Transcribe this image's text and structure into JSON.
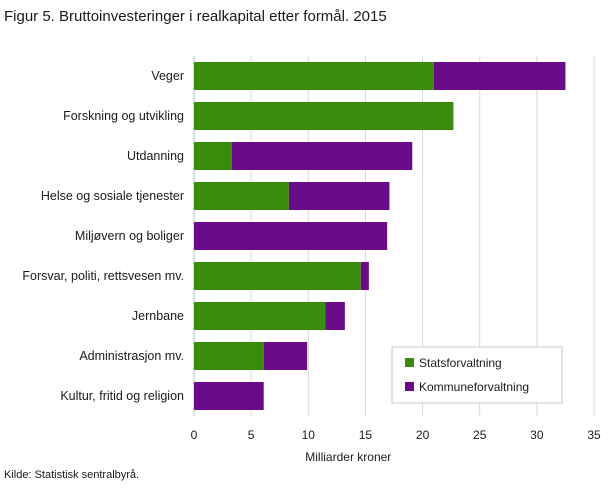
{
  "title": "Figur 5. Bruttoinvesteringer i realkapital etter formål. 2015",
  "source": "Kilde: Statistisk sentralbyrå.",
  "chart_data": {
    "type": "bar",
    "orientation": "horizontal",
    "stacked": true,
    "categories": [
      "Veger",
      "Forskning og utvikling",
      "Utdanning",
      "Helse og sosiale tjenester",
      "Miljøvern og boliger",
      "Forsvar, politi, rettsvesen mv.",
      "Jernbane",
      "Administrasjon mv.",
      "Kultur, fritid og religion"
    ],
    "series": [
      {
        "name": "Statsforvaltning",
        "color": "#3a8c0c",
        "values": [
          21.0,
          22.7,
          3.3,
          8.3,
          0.0,
          14.6,
          11.5,
          6.1,
          0.0
        ]
      },
      {
        "name": "Kommuneforvaltning",
        "color": "#6a0b8a",
        "values": [
          11.5,
          0.0,
          15.8,
          8.8,
          16.9,
          0.7,
          1.7,
          3.8,
          6.1
        ]
      }
    ],
    "xlabel": "Milliarder  kroner",
    "xlim": [
      0,
      35
    ],
    "xticks": [
      0,
      5,
      10,
      15,
      20,
      25,
      30,
      35
    ],
    "grid": true,
    "legend_position": "bottom-right"
  }
}
